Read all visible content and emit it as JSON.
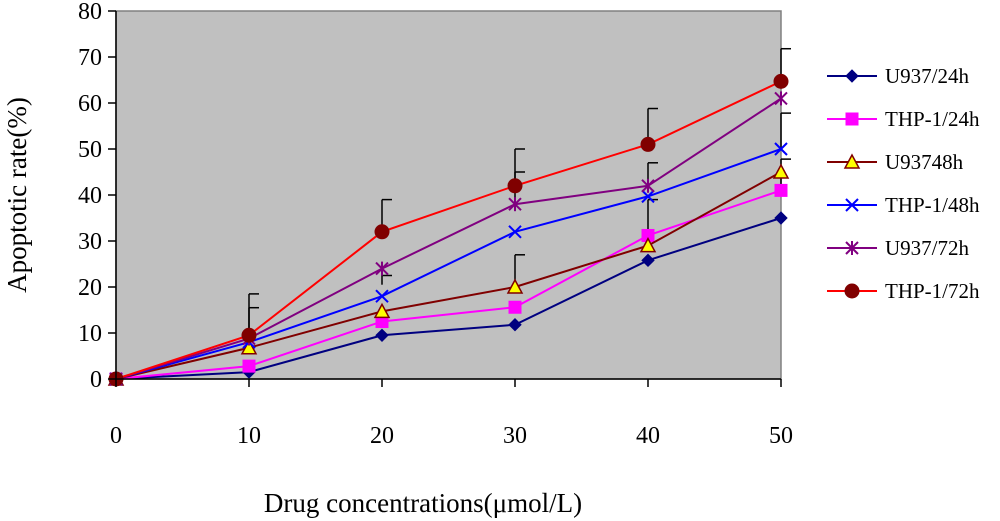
{
  "chart_data": {
    "type": "line",
    "title": "",
    "xlabel": "Drug concentrations(μmol/L)",
    "ylabel": "Apoptotic rate(%)",
    "x": [
      0,
      10,
      20,
      30,
      40,
      50
    ],
    "xlim": [
      0,
      50
    ],
    "ylim": [
      0,
      80
    ],
    "yticks": [
      0,
      10,
      20,
      30,
      40,
      50,
      60,
      70,
      80
    ],
    "xticks": [
      0,
      10,
      20,
      30,
      40,
      50
    ],
    "plot_background": "#c0c0c0",
    "legend_position": "right",
    "series": [
      {
        "name": "U937/24h",
        "color": "#000080",
        "marker": "diamond",
        "values": [
          0,
          1.5,
          9.5,
          11.8,
          25.8,
          35
        ]
      },
      {
        "name": "THP-1/24h",
        "color": "#ff00ff",
        "marker": "square",
        "values": [
          0,
          2.8,
          12.5,
          15.6,
          31.2,
          41
        ]
      },
      {
        "name": "U93748h",
        "color": "#800000",
        "marker": "triangle",
        "fill": "#ffff00",
        "values": [
          0,
          6.8,
          14.7,
          20,
          29,
          45
        ]
      },
      {
        "name": "THP-1/48h",
        "color": "#0000ff",
        "marker": "x",
        "values": [
          0,
          8,
          18,
          32,
          39.7,
          50
        ]
      },
      {
        "name": "U937/72h",
        "color": "#800080",
        "marker": "asterisk",
        "values": [
          0,
          8.8,
          24,
          38,
          42,
          61
        ]
      },
      {
        "name": "THP-1/72h",
        "color": "#ff0000",
        "marker": "circle",
        "markerColor": "#800000",
        "values": [
          0,
          9.5,
          32,
          42,
          51,
          64.7
        ]
      }
    ],
    "error_bars": [
      {
        "x": 10,
        "low": 9.5,
        "high": 18.5
      },
      {
        "x": 10,
        "low": 9,
        "high": 15.5
      },
      {
        "x": 20,
        "low": 32,
        "high": 39
      },
      {
        "x": 20,
        "low": 20.5,
        "high": 22.5
      },
      {
        "x": 30,
        "low": 42,
        "high": 50
      },
      {
        "x": 30,
        "low": 38,
        "high": 45
      },
      {
        "x": 30,
        "low": 20,
        "high": 27
      },
      {
        "x": 40,
        "low": 51,
        "high": 58.8
      },
      {
        "x": 40,
        "low": 42,
        "high": 47
      },
      {
        "x": 40,
        "low": 29,
        "high": 39
      },
      {
        "x": 50,
        "low": 64.7,
        "high": 71.8
      },
      {
        "x": 50,
        "low": 50,
        "high": 57.8
      },
      {
        "x": 50,
        "low": 41,
        "high": 47.8
      }
    ]
  }
}
